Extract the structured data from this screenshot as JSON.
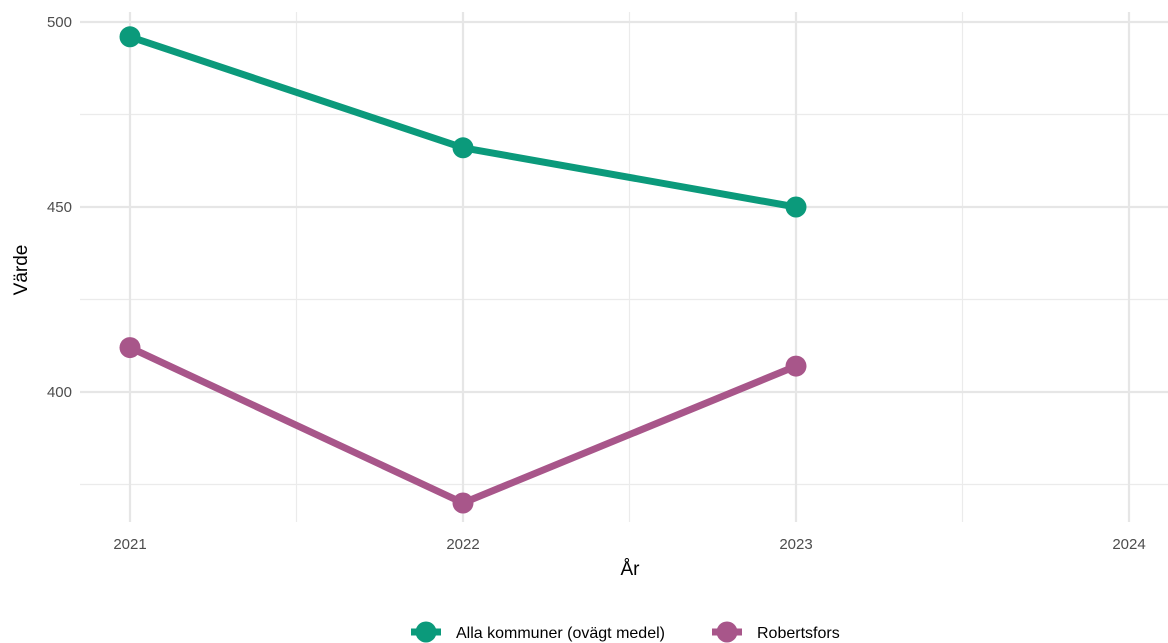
{
  "chart_data": {
    "type": "line",
    "title": "",
    "xlabel": "År",
    "ylabel": "Värde",
    "x": [
      2021,
      2022,
      2023,
      2024
    ],
    "x_ticks": [
      "2021",
      "2022",
      "2023",
      "2024"
    ],
    "y_ticks": [
      400,
      450,
      500
    ],
    "ylim": [
      365,
      503
    ],
    "xlim": [
      2020.85,
      2024.12
    ],
    "grid": true,
    "legend_position": "bottom",
    "series": [
      {
        "name": "Alla kommuner (ovägt medel)",
        "color": "#0b9a7b",
        "points": [
          [
            2021,
            496
          ],
          [
            2022,
            466
          ],
          [
            2023,
            450
          ]
        ]
      },
      {
        "name": "Robertsfors",
        "color": "#a8568a",
        "points": [
          [
            2021,
            412
          ],
          [
            2022,
            370
          ],
          [
            2023,
            407
          ]
        ]
      }
    ]
  }
}
